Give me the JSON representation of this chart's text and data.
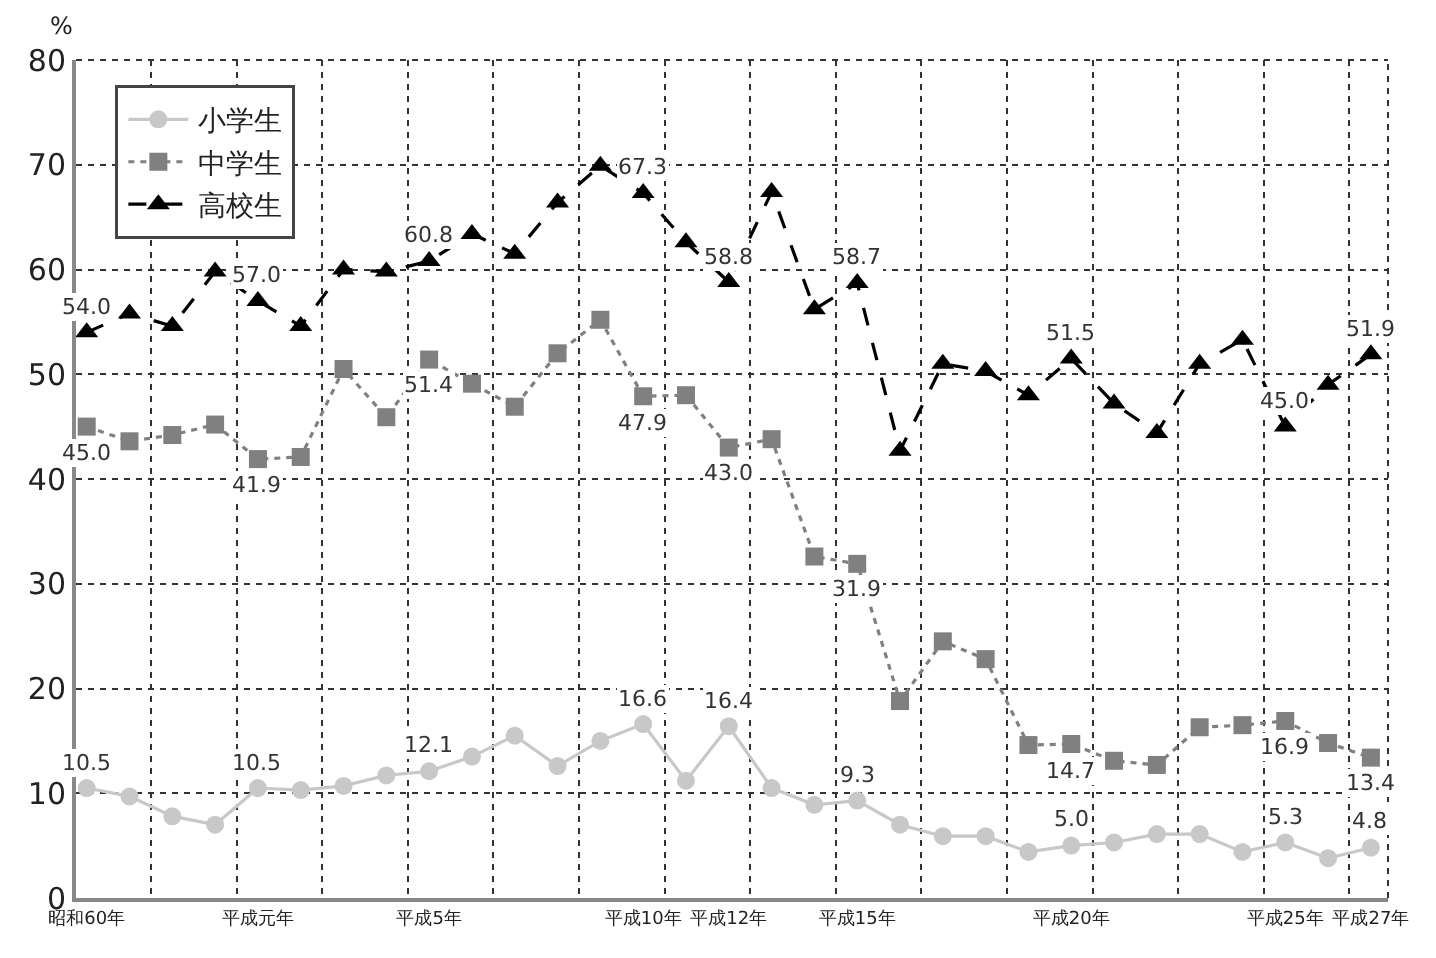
{
  "chart_data": {
    "type": "line",
    "ylabel": "%",
    "categories": [
      "昭和60年",
      null,
      null,
      null,
      "平成元年",
      null,
      null,
      null,
      "平成5年",
      null,
      null,
      null,
      null,
      "平成10年",
      null,
      "平成12年",
      null,
      null,
      "平成15年",
      null,
      null,
      null,
      null,
      "平成20年",
      null,
      null,
      null,
      null,
      "平成25年",
      null,
      "平成27年"
    ],
    "ylim": [
      0,
      80
    ],
    "yticks": [
      0,
      10,
      20,
      30,
      40,
      50,
      60,
      70,
      80
    ],
    "grid": true,
    "legend": "top left",
    "series": [
      {
        "name": "小学生",
        "color": "#c8c8c8",
        "marker": "circle",
        "line_style": "solid",
        "values": [
          10.5,
          9.7,
          7.8,
          7.0,
          10.5,
          10.3,
          10.7,
          11.7,
          12.1,
          13.5,
          15.5,
          12.6,
          15.0,
          16.6,
          11.2,
          16.4,
          10.5,
          8.9,
          9.3,
          7.0,
          5.9,
          5.9,
          4.4,
          5.0,
          5.3,
          6.1,
          6.1,
          4.4,
          5.3,
          3.8,
          4.8
        ],
        "value_labels": [
          "10.5",
          null,
          null,
          null,
          "10.5",
          null,
          null,
          null,
          "12.1",
          null,
          null,
          null,
          null,
          "16.6",
          null,
          "16.4",
          null,
          null,
          "9.3",
          null,
          null,
          null,
          null,
          "5.0",
          null,
          null,
          null,
          null,
          "5.3",
          null,
          "4.8"
        ]
      },
      {
        "name": "中学生",
        "color": "#808080",
        "marker": "square",
        "line_style": "dotted",
        "values": [
          45.0,
          43.6,
          44.2,
          45.2,
          41.9,
          42.1,
          50.5,
          45.9,
          51.4,
          49.1,
          46.9,
          52.0,
          55.2,
          47.9,
          48.0,
          43.0,
          43.8,
          32.6,
          31.9,
          18.8,
          24.5,
          22.8,
          14.6,
          14.7,
          13.1,
          12.7,
          16.3,
          16.5,
          16.9,
          14.8,
          13.4
        ],
        "value_labels": [
          "45.0",
          null,
          null,
          null,
          "41.9",
          null,
          null,
          null,
          "51.4",
          null,
          null,
          null,
          null,
          "47.9",
          null,
          "43.0",
          null,
          null,
          "31.9",
          null,
          null,
          null,
          null,
          "14.7",
          null,
          null,
          null,
          null,
          "16.9",
          null,
          "13.4"
        ]
      },
      {
        "name": "高校生",
        "color": "#000000",
        "marker": "triangle",
        "line_style": "dashed",
        "values": [
          54.0,
          55.8,
          54.6,
          59.8,
          57.0,
          54.6,
          60.0,
          59.8,
          60.8,
          63.4,
          61.5,
          66.4,
          69.9,
          67.3,
          62.6,
          58.8,
          67.4,
          56.2,
          58.7,
          42.7,
          51.0,
          50.3,
          48.0,
          51.5,
          47.2,
          44.4,
          51.0,
          53.3,
          45.0,
          49.0,
          51.9
        ],
        "value_labels": [
          "54.0",
          null,
          null,
          null,
          "57.0",
          null,
          null,
          null,
          "60.8",
          null,
          null,
          null,
          null,
          "67.3",
          null,
          "58.8",
          null,
          null,
          "58.7",
          null,
          null,
          null,
          null,
          "51.5",
          null,
          null,
          null,
          null,
          "45.0",
          null,
          "51.9"
        ]
      }
    ]
  }
}
